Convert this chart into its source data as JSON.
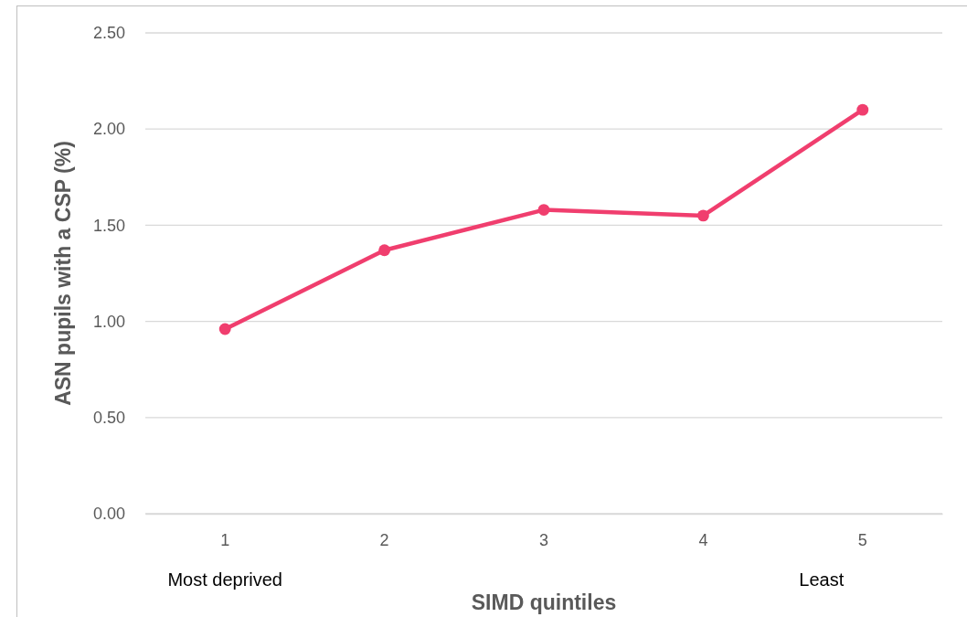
{
  "chart_data": {
    "type": "line",
    "xlabel": "SIMD quintiles",
    "ylabel": "ASN pupils with a CSP (%)",
    "categories": [
      "1",
      "2",
      "3",
      "4",
      "5"
    ],
    "series": [
      {
        "color": "#f03e6e",
        "values": [
          0.96,
          1.37,
          1.58,
          1.55,
          2.1
        ]
      }
    ],
    "ylim": [
      0,
      2.5
    ],
    "yticks": [
      {
        "value": 0,
        "label": "0.00"
      },
      {
        "value": 0.5,
        "label": "0.50"
      },
      {
        "value": 1,
        "label": "1.00"
      },
      {
        "value": 1.5,
        "label": "1.50"
      },
      {
        "value": 2,
        "label": "2.00"
      },
      {
        "value": 2.5,
        "label": "2.50"
      }
    ],
    "grid": "y",
    "marker": "circle",
    "line_style": "solid",
    "annotations": [
      "Most deprived",
      "Least"
    ]
  }
}
